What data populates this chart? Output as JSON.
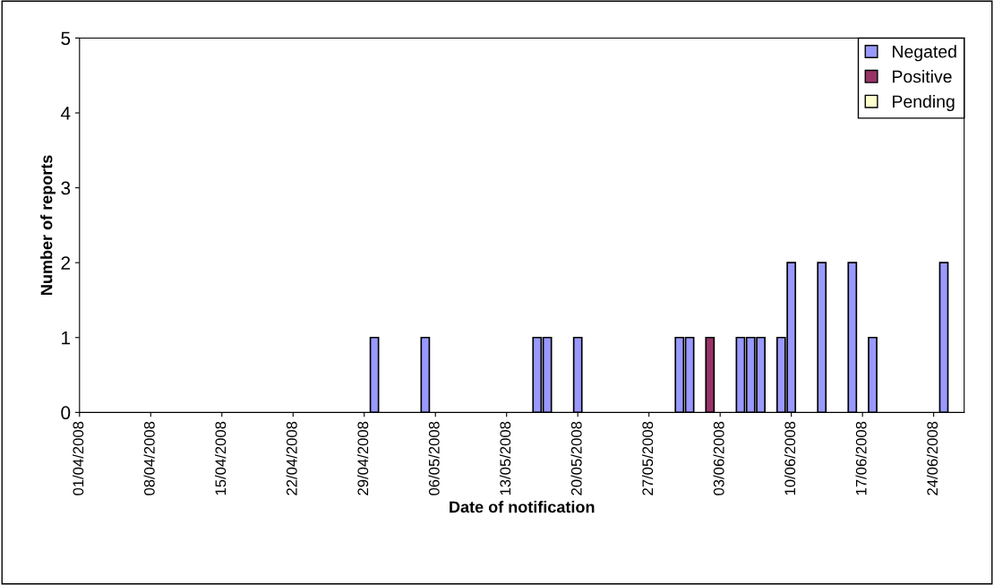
{
  "chart_data": {
    "type": "bar",
    "xlabel": "Date of notification",
    "ylabel": "Number of reports",
    "x": [
      "2008-04-30",
      "2008-05-05",
      "2008-05-16",
      "2008-05-17",
      "2008-05-20",
      "2008-05-30",
      "2008-05-31",
      "2008-06-02",
      "2008-06-05",
      "2008-06-06",
      "2008-06-07",
      "2008-06-09",
      "2008-06-10",
      "2008-06-13",
      "2008-06-16",
      "2008-06-18",
      "2008-06-25"
    ],
    "series": [
      {
        "name": "Negated",
        "color": "#9999ff",
        "values": [
          1,
          1,
          1,
          1,
          1,
          1,
          1,
          0,
          1,
          1,
          1,
          1,
          2,
          2,
          2,
          1,
          2
        ]
      },
      {
        "name": "Positive",
        "color": "#993366",
        "values": [
          0,
          0,
          0,
          0,
          0,
          0,
          0,
          1,
          0,
          0,
          0,
          0,
          0,
          0,
          0,
          0,
          0
        ]
      },
      {
        "name": "Pending",
        "color": "#ffffcc",
        "values": [
          0,
          0,
          0,
          0,
          0,
          0,
          0,
          0,
          0,
          0,
          0,
          0,
          0,
          0,
          0,
          0,
          0
        ]
      }
    ],
    "xlim": [
      "2008-04-01",
      "2008-06-27"
    ],
    "xticks": [
      {
        "value": "2008-04-01",
        "label": "01/04/2008"
      },
      {
        "value": "2008-04-08",
        "label": "08/04/2008"
      },
      {
        "value": "2008-04-15",
        "label": "15/04/2008"
      },
      {
        "value": "2008-04-22",
        "label": "22/04/2008"
      },
      {
        "value": "2008-04-29",
        "label": "29/04/2008"
      },
      {
        "value": "2008-05-06",
        "label": "06/05/2008"
      },
      {
        "value": "2008-05-13",
        "label": "13/05/2008"
      },
      {
        "value": "2008-05-20",
        "label": "20/05/2008"
      },
      {
        "value": "2008-05-27",
        "label": "27/05/2008"
      },
      {
        "value": "2008-06-03",
        "label": "03/06/2008"
      },
      {
        "value": "2008-06-10",
        "label": "10/06/2008"
      },
      {
        "value": "2008-06-17",
        "label": "17/06/2008"
      },
      {
        "value": "2008-06-24",
        "label": "24/06/2008"
      }
    ],
    "ylim": [
      0,
      5
    ],
    "yticks": [
      0,
      1,
      2,
      3,
      4,
      5
    ],
    "legend": "top right",
    "grid": false
  }
}
